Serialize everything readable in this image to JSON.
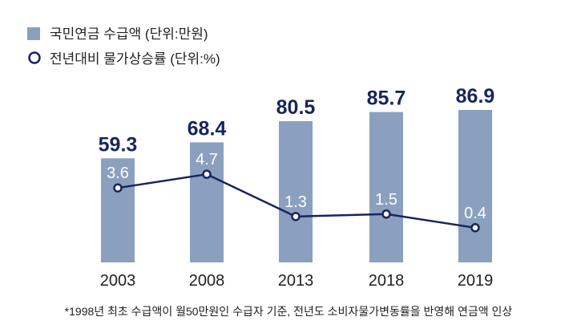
{
  "chart_data": {
    "type": "bar",
    "categories": [
      "2003",
      "2008",
      "2013",
      "2018",
      "2019"
    ],
    "series": [
      {
        "name": "국민연금 수급액 (단위:만원)",
        "kind": "bar",
        "values": [
          59.3,
          68.4,
          80.5,
          85.7,
          86.9
        ],
        "color": "#8aa0be"
      },
      {
        "name": "전년대비 물가상승률 (단위:%)",
        "kind": "line",
        "values": [
          3.6,
          4.7,
          1.3,
          1.5,
          0.4
        ],
        "color": "#17255e"
      }
    ],
    "footnote": "*1998년 최초 수급액이 월50만원인 수급자 기준, 전년도 소비자물가변동률을 반영해 연금액 인상",
    "colors": {
      "bar_label": "#17255e",
      "line_label": "#ffffff",
      "axis_label": "#222222"
    },
    "legend_position": "top-left",
    "grid": false
  }
}
